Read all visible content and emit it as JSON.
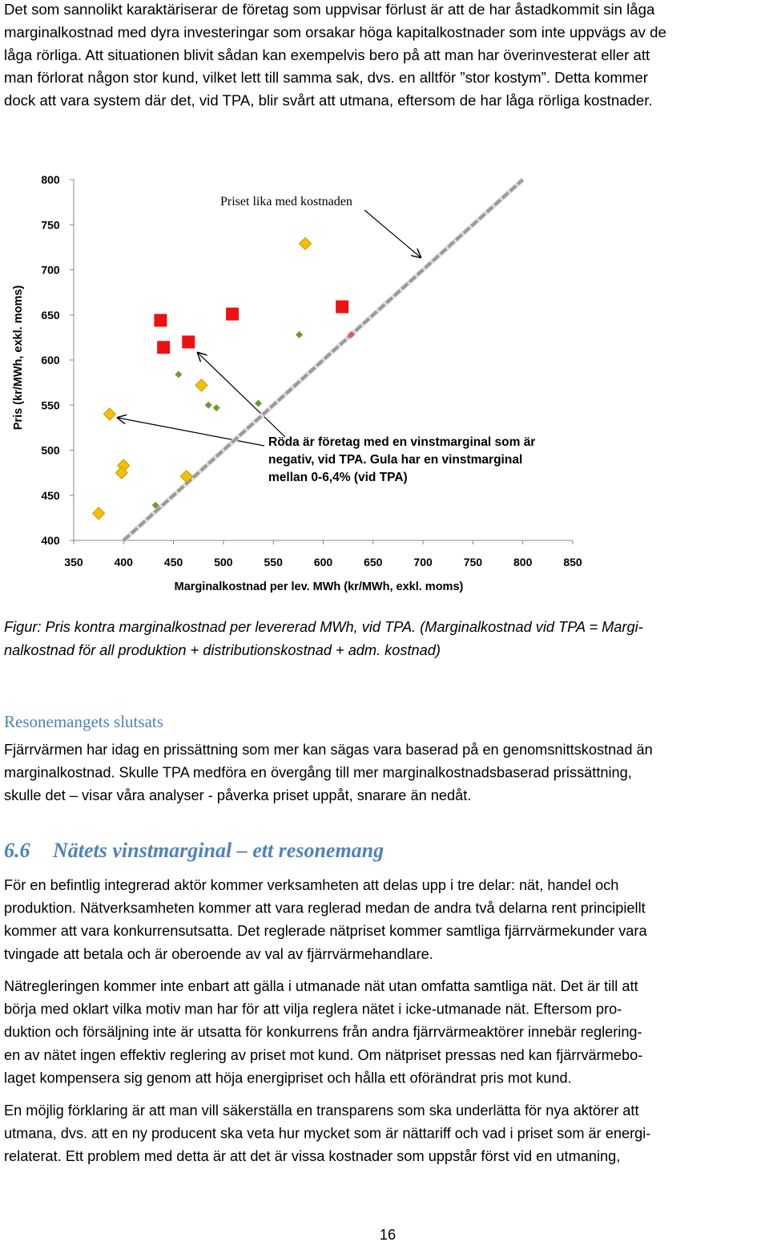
{
  "paragraph_1": {
    "lines": [
      "Det som sannolikt karaktäriserar de företag som uppvisar förlust är att de har åstadkommit sin låga",
      "marginalkostnad med dyra investeringar som orsakar höga kapitalkostnader som inte uppvägs av de",
      "låga rörliga. Att situationen blivit sådan kan exempelvis bero på att man har överinvesterat eller att",
      "man förlorat någon stor kund, vilket lett till samma sak, dvs. en alltför ”stor kostym”. Detta kommer",
      "dock att vara system där det, vid TPA, blir svårt att utmana, eftersom de har låga rörliga kostnader."
    ]
  },
  "chart_data": {
    "type": "scatter",
    "x_label": "Marginalkostnad per lev. MWh (kr/MWh, exkl. moms)",
    "y_label": "Pris (kr/MWh, exkl. moms)",
    "xlim": [
      350,
      850
    ],
    "ylim": [
      400,
      800
    ],
    "xticks": [
      350,
      400,
      450,
      500,
      550,
      600,
      650,
      700,
      750,
      800,
      850
    ],
    "yticks": [
      400,
      450,
      500,
      550,
      600,
      650,
      700,
      750,
      800
    ],
    "series": [
      {
        "color": "#ee1111",
        "marker": "square",
        "x": [
          437,
          440,
          465,
          509,
          619
        ],
        "values": [
          644,
          614,
          620,
          651,
          659
        ]
      },
      {
        "color": "#ee5555",
        "marker": "small-diamond",
        "x": [
          628
        ],
        "values": [
          628
        ]
      },
      {
        "color": "#f2c200",
        "marker": "diamond",
        "x": [
          582,
          386,
          478,
          400,
          398,
          463,
          375
        ],
        "values": [
          729,
          540,
          572,
          483,
          475,
          471,
          430
        ]
      },
      {
        "color": "#6e9a2e",
        "marker": "small-diamond",
        "x": [
          576,
          455,
          485,
          493,
          535,
          432
        ],
        "values": [
          628,
          584,
          550,
          547,
          552,
          439
        ]
      }
    ],
    "annotations": [
      {
        "lines": [
          "Priset lika med kostnaden"
        ]
      },
      {
        "lines": [
          "Röda är företag med en vinstmarginal som är",
          "negativ, vid TPA. Gula har en vinstmarginal",
          "mellan 0-6,4% (vid TPA)"
        ]
      }
    ]
  },
  "caption": {
    "lines": [
      "Figur: Pris kontra marginalkostnad per levererad MWh, vid TPA. (Marginalkostnad vid TPA = Margi-",
      "nalkostnad för all produktion + distributionskostnad + adm. kostnad)"
    ]
  },
  "subheading": "Resonemangets slutsats",
  "paragraph_2": {
    "lines": [
      "Fjärrvärmen har idag en prissättning som mer kan sägas vara baserad på en genomsnittskostnad än",
      "marginalkostnad. Skulle TPA medföra en övergång till mer marginalkostnadsbaserad prissättning,",
      "skulle det – visar våra analyser - påverka priset uppåt, snarare än nedåt."
    ]
  },
  "section": {
    "number": "6.6",
    "title": "Nätets vinstmarginal – ett resonemang"
  },
  "paragraphs": [
    {
      "lines": [
        "För en befintlig integrerad aktör kommer verksamheten att delas upp i tre delar: nät, handel och",
        "produktion. Nätverksamheten kommer att vara reglerad medan de andra två delarna rent principiellt",
        "kommer att vara konkurrensutsatta. Det reglerade nätpriset kommer samtliga fjärrvärmekunder vara",
        "tvingade att betala och är oberoende av val av fjärrvärmehandlare."
      ]
    },
    {
      "lines": [
        "Nätregleringen kommer inte enbart att gälla i utmanade nät utan omfatta samtliga nät. Det är till att",
        "börja med oklart vilka motiv man har för att vilja reglera nätet i icke-utmanade nät. Eftersom pro-",
        "duktion och försäljning inte är utsatta för konkurrens från andra fjärrvärmeaktörer innebär reglering-",
        "en av nätet ingen effektiv reglering av priset mot kund. Om nätpriset pressas ned kan fjärrvärmebo-",
        "laget kompensera sig genom att höja energipriset och hålla ett oförändrat pris mot kund."
      ]
    },
    {
      "lines": [
        "En möjlig förklaring är att man vill säkerställa en transparens som ska underlätta för nya aktörer att",
        "utmana, dvs. att en ny producent ska veta hur mycket som är nättariff och vad i priset som är energi-",
        "relaterat. Ett problem med detta är att det är vissa kostnader som uppstår först vid en utmaning,"
      ]
    }
  ],
  "page_number": "16"
}
